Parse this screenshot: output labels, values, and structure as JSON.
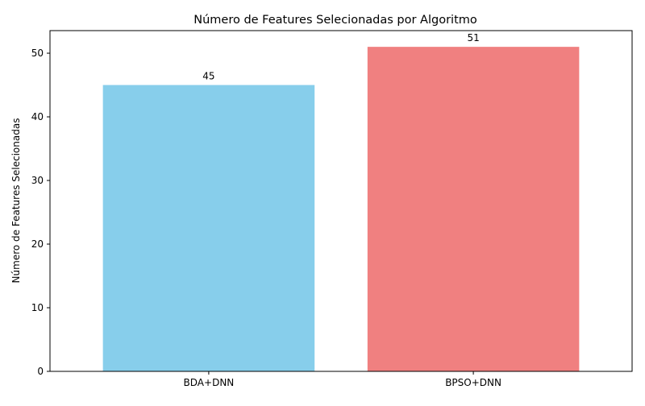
{
  "chart_data": {
    "type": "bar",
    "title": "Número de Features Selecionadas por Algoritmo",
    "xlabel": "",
    "ylabel": "Número de Features Selecionadas",
    "categories": [
      "BDA+DNN",
      "BPSO+DNN"
    ],
    "values": [
      45,
      51
    ],
    "data_labels": [
      "45",
      "51"
    ],
    "colors": [
      "#87ceeb",
      "#f08080"
    ],
    "ylim": [
      0,
      53.55
    ],
    "yticks": [
      0,
      10,
      20,
      30,
      40,
      50
    ],
    "ytick_labels": [
      "0",
      "10",
      "20",
      "30",
      "40",
      "50"
    ],
    "grid": false,
    "legend": "none"
  }
}
